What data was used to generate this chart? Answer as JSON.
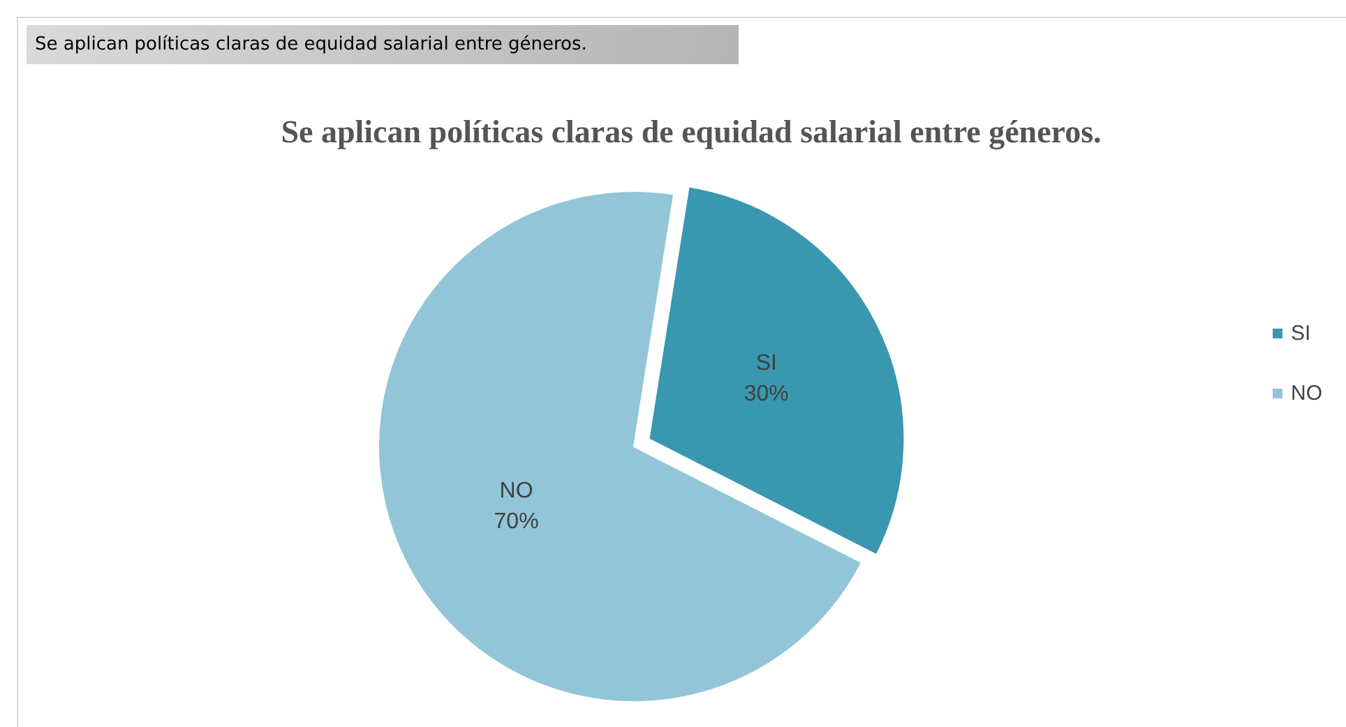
{
  "chart_data": {
    "type": "pie",
    "subtitle": "Se aplican políticas claras de equidad salarial entre géneros.",
    "title": "Se aplican políticas claras de equidad salarial entre géneros.",
    "categories": [
      "SI",
      "NO"
    ],
    "values": [
      30,
      70
    ],
    "colors": [
      "#3a97b0",
      "#92c5d8"
    ],
    "value_labels": [
      "30%",
      "70%"
    ],
    "legend": "right"
  }
}
